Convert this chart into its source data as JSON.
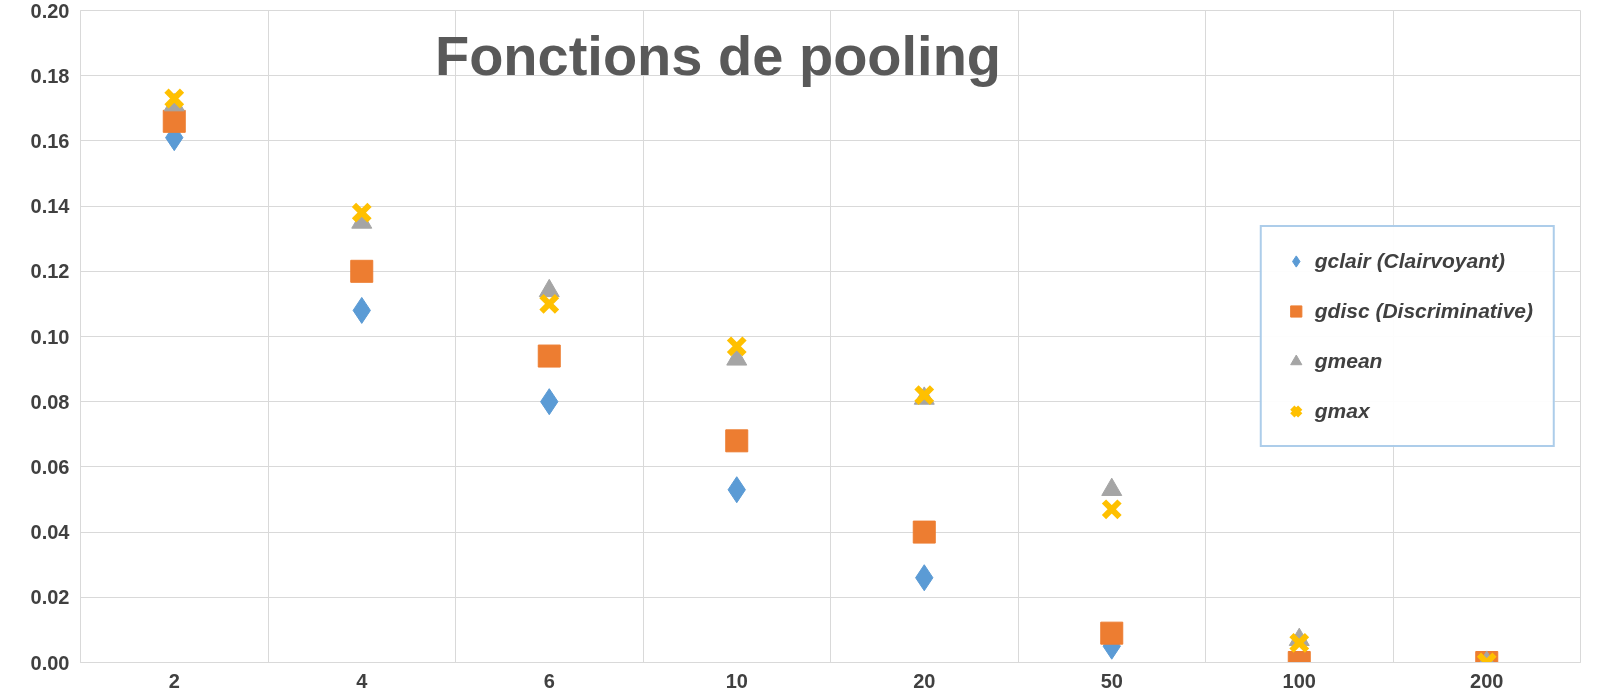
{
  "chart_data": {
    "type": "scatter",
    "title": "Fonctions de pooling",
    "categories": [
      "2",
      "4",
      "6",
      "10",
      "20",
      "50",
      "100",
      "200"
    ],
    "series": [
      {
        "name": "gclair (Clairvoyant)",
        "color": "#5b9bd5",
        "marker": "diamond",
        "values": [
          0.161,
          0.108,
          0.08,
          0.053,
          0.026,
          0.005,
          null,
          null
        ]
      },
      {
        "name": "gdisc (Discriminative)",
        "color": "#ed7d31",
        "marker": "square",
        "values": [
          0.166,
          0.12,
          0.094,
          0.068,
          0.04,
          0.009,
          0.0,
          0.0
        ]
      },
      {
        "name": "gmean",
        "color": "#a5a5a5",
        "marker": "triangle",
        "values": [
          0.171,
          0.135,
          0.114,
          0.093,
          0.081,
          0.053,
          0.007,
          0.0
        ]
      },
      {
        "name": "gmax",
        "color": "#ffc000",
        "marker": "cross",
        "values": [
          0.173,
          0.138,
          0.11,
          0.097,
          0.082,
          0.047,
          0.006,
          0.0
        ]
      }
    ],
    "ylim": [
      0,
      0.2
    ],
    "yticks": [
      {
        "value": 0,
        "label": "0.00"
      },
      {
        "value": 0.02,
        "label": "0.02"
      },
      {
        "value": 0.04,
        "label": "0.04"
      },
      {
        "value": 0.06,
        "label": "0.06"
      },
      {
        "value": 0.08,
        "label": "0.08"
      },
      {
        "value": 0.1,
        "label": "0.10"
      },
      {
        "value": 0.12,
        "label": "0.12"
      },
      {
        "value": 0.14,
        "label": "0.14"
      },
      {
        "value": 0.16,
        "label": "0.16"
      },
      {
        "value": 0.18,
        "label": "0.18"
      },
      {
        "value": 0.2,
        "label": "0.20"
      }
    ],
    "grid": true,
    "legend": "right"
  }
}
